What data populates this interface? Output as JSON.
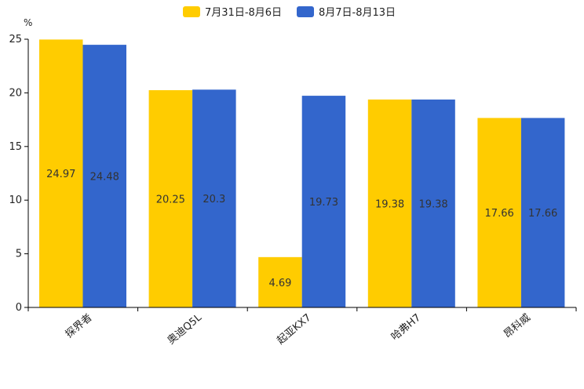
{
  "chart_data": {
    "type": "bar",
    "title": "",
    "unit": "%",
    "xlabel": "",
    "ylabel": "",
    "ylim": [
      0,
      25
    ],
    "yticks": [
      0,
      5,
      10,
      15,
      20,
      25
    ],
    "categories": [
      "探界者",
      "奥迪Q5L",
      "起亚KX7",
      "哈弗H7",
      "昂科威"
    ],
    "series": [
      {
        "name": "7月31日-8月6日",
        "color": "#ffcc00",
        "values": [
          24.97,
          20.25,
          4.69,
          19.38,
          17.66
        ]
      },
      {
        "name": "8月7日-8月13日",
        "color": "#3366cc",
        "values": [
          24.48,
          20.3,
          19.73,
          19.38,
          17.66
        ]
      }
    ],
    "legend_position": "top-center",
    "grid": false
  }
}
